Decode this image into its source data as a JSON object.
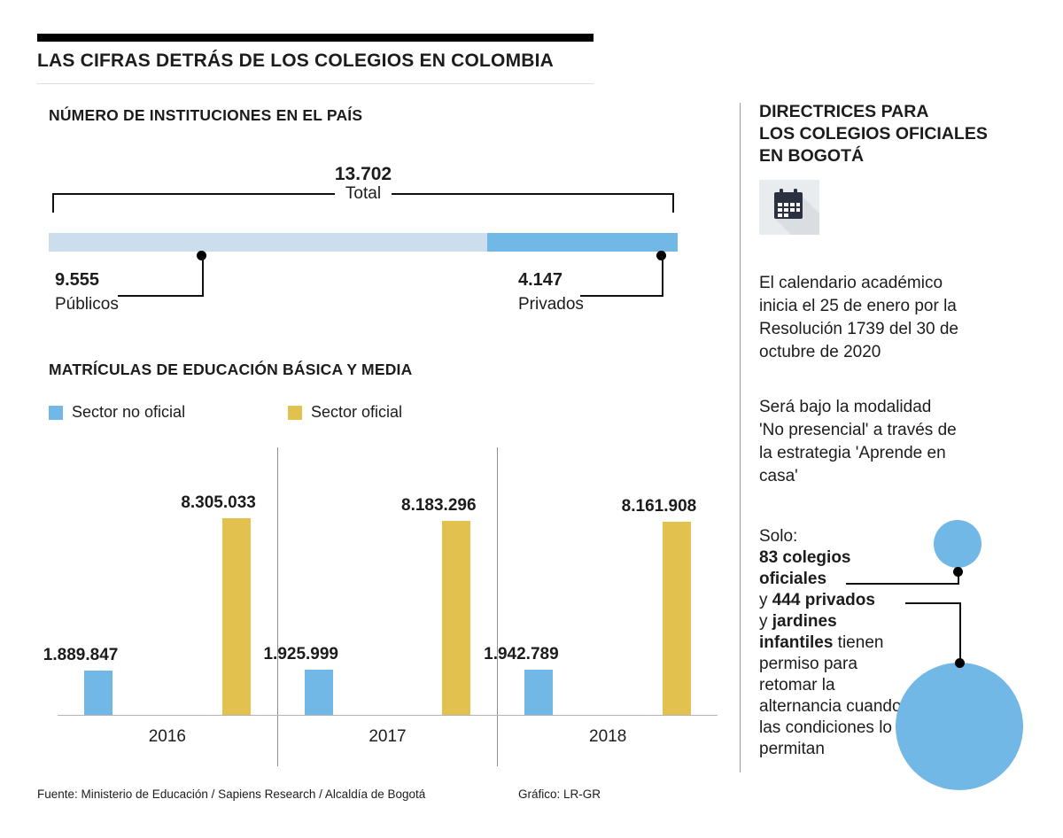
{
  "header": {
    "title": "LAS CIFRAS DETRÁS DE LOS COLEGIOS EN COLOMBIA"
  },
  "chart_data": [
    {
      "type": "bar",
      "subtype": "horizontal-stacked",
      "title": "NÚMERO DE INSTITUCIONES EN EL PAÍS",
      "total": {
        "value": 13702,
        "display": "13.702",
        "label": "Total"
      },
      "segments": [
        {
          "label": "Públicos",
          "value": 9555,
          "display": "9.555",
          "color": "#ccddee"
        },
        {
          "label": "Privados",
          "value": 4147,
          "display": "4.147",
          "color": "#72b8e6"
        }
      ]
    },
    {
      "type": "bar",
      "title": "MATRÍCULAS DE EDUCACIÓN BÁSICA Y MEDIA",
      "categories": [
        "2016",
        "2017",
        "2018"
      ],
      "series": [
        {
          "name": "Sector no oficial",
          "color": "#72b8e6",
          "values": [
            1889847,
            1925999,
            1942789
          ],
          "displays": [
            "1.889.847",
            "1.925.999",
            "1.942.789"
          ]
        },
        {
          "name": "Sector oficial",
          "color": "#e3c14e",
          "values": [
            8305033,
            8183296,
            8161908
          ],
          "displays": [
            "8.305.033",
            "8.183.296",
            "8.161.908"
          ]
        }
      ],
      "ylim": [
        0,
        8305033
      ],
      "grid": false,
      "legend_position": "top"
    }
  ],
  "sidebar": {
    "title_lines": [
      "DIRECTRICES PARA",
      "LOS COLEGIOS OFICIALES",
      "EN BOGOTÁ"
    ],
    "icon": "calendar-icon",
    "para_calendar": "El calendario académico inicia el 25 de enero por la Resolución 1739 del 30 de octubre de 2020",
    "para_modalidad": "Será bajo la modalidad 'No presencial' a través de la estrategia 'Aprende en casa'",
    "solo": {
      "intro": "Solo:",
      "oficiales_bold": "83 colegios oficiales",
      "privados_pre": "y ",
      "privados_bold": "444 privados",
      "jardines_pre": "y ",
      "jardines_bold": "jardines infantiles",
      "rest": " tienen permiso para retomar la alternancia cuando las condiciones lo permitan",
      "circle_color": "#72b8e6"
    }
  },
  "footer": {
    "source": "Fuente: Ministerio de Educación / Sapiens Research / Alcaldía de Bogotá",
    "credit": "Gráfico: LR-GR"
  }
}
